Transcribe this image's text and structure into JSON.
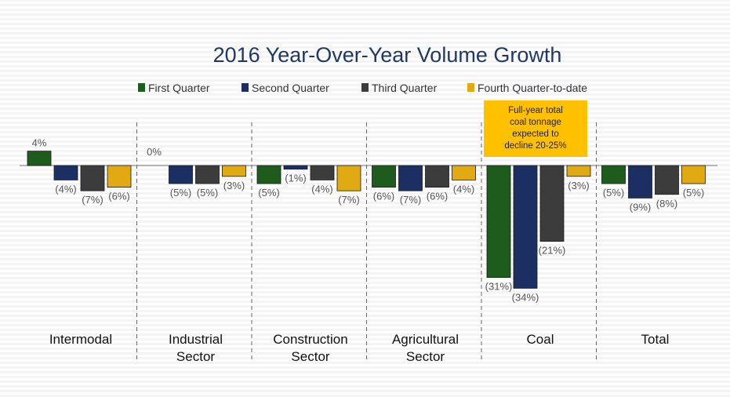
{
  "chart_data": {
    "type": "bar",
    "title": "2016 Year-Over-Year Volume Growth",
    "categories": [
      [
        "Intermodal"
      ],
      [
        "Industrial",
        "Sector"
      ],
      [
        "Construction",
        "Sector"
      ],
      [
        "Agricultural",
        "Sector"
      ],
      [
        "Coal"
      ],
      [
        "Total"
      ]
    ],
    "series": [
      {
        "name": "First Quarter",
        "color": "#1e5c1e",
        "values": [
          4,
          0,
          -5,
          -6,
          -31,
          -5
        ]
      },
      {
        "name": "Second Quarter",
        "color": "#1c2f63",
        "values": [
          -4,
          -5,
          -1,
          -7,
          -34,
          -9
        ]
      },
      {
        "name": "Third Quarter",
        "color": "#3c3c3c",
        "values": [
          -7,
          -5,
          -4,
          -6,
          -21,
          -8
        ]
      },
      {
        "name": "Fourth Quarter-to-date",
        "color": "#e2aa12",
        "values": [
          -6,
          -3,
          -7,
          -4,
          -3,
          -5
        ]
      }
    ],
    "data_labels": [
      [
        "4%",
        "0%",
        "(5%)",
        "(6%)",
        "(31%)",
        "(5%)"
      ],
      [
        "(4%)",
        "(5%)",
        "(1%)",
        "(7%)",
        "(34%)",
        "(9%)"
      ],
      [
        "(7%)",
        "(5%)",
        "(4%)",
        "(6%)",
        "(21%)",
        "(8%)"
      ],
      [
        "(6%)",
        "(3%)",
        "(7%)",
        "(4%)",
        "(3%)",
        "(5%)"
      ]
    ],
    "annotation": {
      "category": "Coal",
      "lines": [
        "Full-year total",
        "coal tonnage",
        "expected to",
        "decline 20-25%"
      ],
      "color": "#ffc000"
    },
    "legend_position": "top",
    "ylim": [
      -36,
      6
    ],
    "grid": true
  }
}
